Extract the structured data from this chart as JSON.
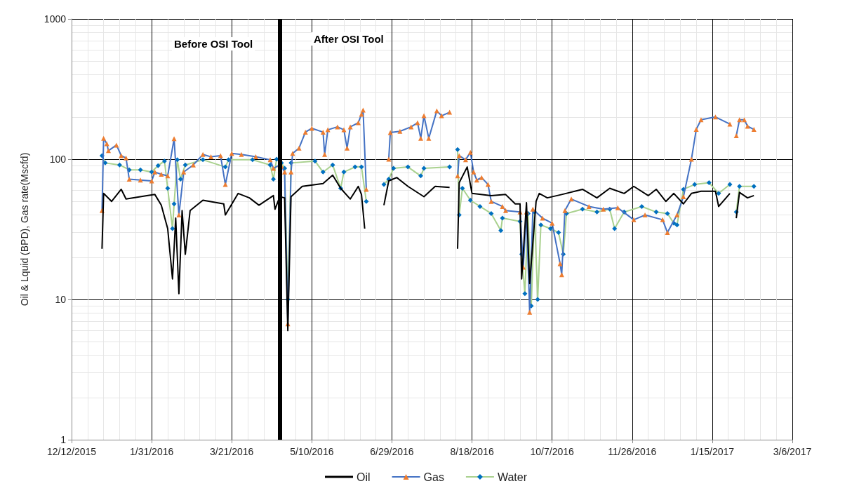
{
  "chart_data": {
    "type": "line",
    "ylabel": "Oil & Lquid (BPD), Gas rate(Mscfd)",
    "log": "y",
    "grid": true,
    "legend": "bottom",
    "ylim": [
      1,
      1000
    ],
    "yticks": [
      1,
      10,
      100,
      1000
    ],
    "xlim": [
      "2015-12-12",
      "2017-03-06"
    ],
    "xticks": [
      {
        "value": "2015-12-12",
        "label": "12/12/2015"
      },
      {
        "value": "2016-01-31",
        "label": "1/31/2016"
      },
      {
        "value": "2016-03-21",
        "label": "3/21/2016"
      },
      {
        "value": "2016-05-10",
        "label": "5/10/2016"
      },
      {
        "value": "2016-06-29",
        "label": "6/29/2016"
      },
      {
        "value": "2016-08-18",
        "label": "8/18/2016"
      },
      {
        "value": "2016-10-07",
        "label": "10/7/2016"
      },
      {
        "value": "2016-11-26",
        "label": "11/26/2016"
      },
      {
        "value": "2017-01-15",
        "label": "1/15/2017"
      },
      {
        "value": "2017-03-06",
        "label": "3/6/2017"
      }
    ],
    "ref_lines": [
      {
        "axis": "x",
        "value": "2016-04-20",
        "color": "#000000"
      }
    ],
    "annotations": [
      "Before OSI Tool",
      "After OSI Tool"
    ],
    "series": [
      {
        "name": "Oil",
        "color": "#000000",
        "marker": "none",
        "x": [
          "2015-12-31",
          "2016-01-01",
          "2016-01-06",
          "2016-01-12",
          "2016-01-15",
          "2016-01-28",
          "2016-02-02",
          "2016-02-06",
          "2016-02-10",
          "2016-02-13",
          "2016-02-15",
          "2016-02-17",
          "2016-02-19",
          "2016-02-21",
          "2016-02-24",
          "2016-03-03",
          "2016-03-16",
          "2016-03-17",
          "2016-03-25",
          "2016-04-01",
          "2016-04-07",
          "2016-04-16",
          "2016-04-17",
          "2016-04-20",
          "2016-04-23",
          "2016-04-25",
          "2016-04-27",
          "2016-05-04",
          "2016-05-17",
          "2016-05-23",
          "2016-05-28",
          "2016-06-03",
          "2016-06-08",
          "2016-06-10",
          "2016-06-12",
          "2016-06-18",
          "2016-06-24",
          "2016-06-27",
          "2016-07-02",
          "2016-07-09",
          "2016-07-19",
          "2016-07-26",
          "2016-08-04",
          "2016-08-06",
          "2016-08-09",
          "2016-08-10",
          "2016-08-15",
          "2016-08-18",
          "2016-08-30",
          "2016-09-08",
          "2016-09-14",
          "2016-09-17",
          "2016-09-18",
          "2016-09-21",
          "2016-09-23",
          "2016-09-27",
          "2016-09-29",
          "2016-10-04",
          "2016-10-13",
          "2016-10-26",
          "2016-11-04",
          "2016-11-12",
          "2016-11-21",
          "2016-11-27",
          "2016-12-06",
          "2016-12-11",
          "2016-12-17",
          "2016-12-22",
          "2016-12-28",
          "2017-01-02",
          "2017-01-08",
          "2017-01-17",
          "2017-01-19",
          "2017-01-26",
          "2017-01-28",
          "2017-01-30",
          "2017-02-01",
          "2017-02-06",
          "2017-02-10"
        ],
        "values": [
          23,
          57,
          50,
          61,
          52,
          55,
          56,
          47,
          32,
          14,
          38,
          11,
          43,
          21,
          43,
          51,
          48,
          40,
          57,
          53,
          47,
          55,
          44,
          54,
          53,
          6,
          54,
          64,
          67,
          77,
          62,
          52,
          64,
          56,
          32,
          null,
          47,
          70,
          74,
          64,
          54,
          64,
          63,
          null,
          23,
          68,
          88,
          57,
          55,
          56,
          48,
          48,
          14,
          49,
          13,
          50,
          57,
          53,
          56,
          61,
          53,
          62,
          57,
          64,
          55,
          61,
          50,
          57,
          48,
          57,
          59,
          59,
          46,
          57,
          null,
          38,
          58,
          53,
          55
        ]
      },
      {
        "name": "Gas",
        "color": "#4472c4",
        "colors": [
          "#ed7d31",
          "#ed7d31",
          "#ed7d31",
          "#ed7d31",
          "#ed7d31",
          "#ed7d31",
          "#ed7d31",
          "#ed7d31",
          "#ed7d31",
          "#ed7d31",
          "#ed7d31",
          "#ed7d31",
          "#ed7d31",
          "#ed7d31",
          "#ed7d31",
          "#ed7d31",
          "#ed7d31",
          "#ed7d31",
          "#ed7d31",
          "#ed7d31",
          "#ed7d31",
          "#ed7d31",
          "#ed7d31",
          "#ed7d31",
          "#ed7d31",
          "#ed7d31",
          "#ed7d31",
          "#ed7d31",
          "#ed7d31",
          "#ed7d31",
          "#ed7d31",
          "#ed7d31",
          "#ed7d31",
          "#ed7d31",
          "#ed7d31",
          "#ed7d31",
          "#ed7d31",
          "#ed7d31",
          "#ed7d31",
          "#ed7d31",
          "#ed7d31",
          "#ed7d31",
          "#ed7d31",
          "#ed7d31",
          "#ed7d31",
          "#ed7d31",
          "#ed7d31",
          "#ed7d31",
          "#ed7d31",
          "#ed7d31",
          "#ed7d31",
          "#ed7d31",
          "#ed7d31",
          "#ed7d31",
          "#ed7d31",
          "#ed7d31",
          "#ed7d31",
          "#ed7d31",
          "#ed7d31",
          "#ed7d31",
          "#ed7d31",
          "#ed7d31",
          "#ed7d31",
          "#ed7d31",
          "#ed7d31",
          "#ed7d31",
          "#ed7d31",
          "#ed7d31",
          "#ed7d31",
          "#ed7d31",
          "#ed7d31",
          "#ed7d31",
          "#ed7d31",
          "#ed7d31",
          "#ed7d31",
          "#ed7d31",
          "#ed7d31",
          "#ed7d31",
          "#ed7d31",
          "#ed7d31",
          "#ed7d31",
          "#ed7d31",
          "#ed7d31",
          "#ed7d31",
          "#ed7d31",
          "#ed7d31",
          "#ed7d31",
          "#ed7d31",
          "#ed7d31",
          "#ed7d31",
          "#ed7d31",
          "#ed7d31",
          "#ed7d31",
          "#ed7d31",
          "#ed7d31",
          "#ed7d31",
          "#ed7d31",
          "#ed7d31",
          "#ed7d31",
          "#ed7d31",
          "#ed7d31"
        ],
        "marker": "triangle",
        "x": [
          "2015-12-31",
          "2016-01-01",
          "2016-01-03",
          "2016-01-04",
          "2016-01-09",
          "2016-01-12",
          "2016-01-15",
          "2016-01-17",
          "2016-01-24",
          "2016-01-31",
          "2016-02-02",
          "2016-02-06",
          "2016-02-10",
          "2016-02-14",
          "2016-02-17",
          "2016-02-20",
          "2016-02-26",
          "2016-03-03",
          "2016-03-08",
          "2016-03-14",
          "2016-03-17",
          "2016-03-21",
          "2016-03-27",
          "2016-04-05",
          "2016-04-14",
          "2016-04-16",
          "2016-04-20",
          "2016-04-21",
          "2016-04-23",
          "2016-04-25",
          "2016-04-27",
          "2016-04-28",
          "2016-05-02",
          "2016-05-06",
          "2016-05-10",
          "2016-05-17",
          "2016-05-18",
          "2016-05-20",
          "2016-05-26",
          "2016-05-30",
          "2016-06-01",
          "2016-06-03",
          "2016-06-08",
          "2016-06-10",
          "2016-06-11",
          "2016-06-13",
          "2016-06-19",
          "2016-06-27",
          "2016-06-28",
          "2016-07-04",
          "2016-07-11",
          "2016-07-15",
          "2016-07-17",
          "2016-07-19",
          "2016-07-22",
          "2016-07-27",
          "2016-07-30",
          "2016-08-04",
          "2016-08-06",
          "2016-08-09",
          "2016-08-10",
          "2016-08-14",
          "2016-08-17",
          "2016-08-19",
          "2016-08-21",
          "2016-08-24",
          "2016-08-28",
          "2016-08-30",
          "2016-09-06",
          "2016-09-08",
          "2016-09-17",
          "2016-09-19",
          "2016-09-21",
          "2016-09-23",
          "2016-09-25",
          "2016-10-01",
          "2016-10-07",
          "2016-10-12",
          "2016-10-13",
          "2016-10-15",
          "2016-10-19",
          "2016-10-30",
          "2016-11-08",
          "2016-11-17",
          "2016-11-27",
          "2016-12-04",
          "2016-12-15",
          "2016-12-18",
          "2016-12-24",
          "2016-12-28",
          "2017-01-02",
          "2017-01-05",
          "2017-01-08",
          "2017-01-17",
          "2017-01-26",
          "2017-01-28",
          "2017-01-30",
          "2017-02-01",
          "2017-02-04",
          "2017-02-06",
          "2017-02-10"
        ],
        "values": [
          43,
          141,
          129,
          115,
          126,
          106,
          102,
          72,
          71,
          70,
          81,
          78,
          76,
          140,
          40,
          81,
          91,
          108,
          104,
          106,
          66,
          110,
          108,
          104,
          99,
          86,
          91,
          89,
          81,
          6.7,
          81,
          110,
          120,
          156,
          166,
          156,
          108,
          162,
          170,
          162,
          120,
          170,
          182,
          209,
          224,
          61,
          null,
          100,
          155,
          158,
          170,
          182,
          141,
          204,
          141,
          221,
          204,
          216,
          null,
          76,
          106,
          99,
          112,
          81,
          71,
          74,
          66,
          50,
          46,
          43,
          42,
          17,
          42,
          8.1,
          44,
          38,
          35,
          18,
          15,
          43,
          52,
          46,
          44,
          45,
          37,
          40,
          37,
          30,
          40,
          54,
          100,
          163,
          191,
          200,
          178,
          null,
          147,
          191,
          191,
          172,
          163
        ]
      },
      {
        "name": "Water",
        "color": "#a9d18e",
        "colors": [
          "#0070c0",
          "#0070c0",
          "#0070c0",
          "#0070c0",
          "#0070c0",
          "#0070c0",
          "#0070c0",
          "#0070c0",
          "#0070c0",
          "#0070c0",
          "#0070c0",
          "#0070c0",
          "#0070c0",
          "#0070c0",
          "#0070c0",
          "#0070c0",
          "#0070c0",
          "#0070c0",
          "#0070c0",
          "#0070c0",
          "#0070c0",
          "#0070c0",
          "#0070c0",
          "#0070c0",
          "#0070c0",
          "#0070c0",
          "#0070c0",
          "#0070c0",
          "#0070c0",
          "#0070c0",
          "#0070c0",
          "#0070c0",
          "#0070c0",
          "#0070c0",
          "#0070c0",
          "#0070c0",
          "#0070c0",
          "#0070c0",
          "#0070c0",
          "#0070c0",
          "#0070c0",
          "#0070c0",
          "#0070c0",
          "#0070c0",
          "#0070c0",
          "#0070c0",
          "#0070c0",
          "#0070c0",
          "#0070c0",
          "#0070c0",
          "#0070c0",
          "#0070c0",
          "#0070c0",
          "#0070c0",
          "#0070c0",
          "#0070c0",
          "#0070c0",
          "#0070c0",
          "#0070c0",
          "#0070c0",
          "#0070c0",
          "#0070c0",
          "#0070c0",
          "#0070c0",
          "#0070c0",
          "#0070c0",
          "#0070c0",
          "#0070c0",
          "#0070c0",
          "#0070c0",
          "#0070c0",
          "#0070c0",
          "#0070c0",
          "#0070c0",
          "#0070c0",
          "#0070c0",
          "#0070c0",
          "#0070c0",
          "#0070c0",
          "#0070c0",
          "#0070c0"
        ],
        "marker": "diamond",
        "x": [
          "2015-12-31",
          "2016-01-02",
          "2016-01-11",
          "2016-01-17",
          "2016-01-24",
          "2016-01-31",
          "2016-02-04",
          "2016-02-08",
          "2016-02-10",
          "2016-02-13",
          "2016-02-14",
          "2016-02-16",
          "2016-02-18",
          "2016-02-21",
          "2016-03-03",
          "2016-03-17",
          "2016-03-19",
          "2016-04-03",
          "2016-04-14",
          "2016-04-16",
          "2016-04-18",
          "2016-04-21",
          "2016-04-23",
          "2016-04-25",
          "2016-04-27",
          "2016-05-12",
          "2016-05-17",
          "2016-05-23",
          "2016-05-28",
          "2016-05-30",
          "2016-06-06",
          "2016-06-10",
          "2016-06-13",
          "2016-06-19",
          "2016-06-24",
          "2016-06-27",
          "2016-06-30",
          "2016-07-09",
          "2016-07-17",
          "2016-07-19",
          "2016-08-04",
          "2016-08-06",
          "2016-08-09",
          "2016-08-10",
          "2016-08-12",
          "2016-08-17",
          "2016-08-23",
          "2016-08-30",
          "2016-09-05",
          "2016-09-06",
          "2016-09-17",
          "2016-09-18",
          "2016-09-20",
          "2016-09-22",
          "2016-09-24",
          "2016-09-26",
          "2016-09-28",
          "2016-09-30",
          "2016-10-06",
          "2016-10-11",
          "2016-10-14",
          "2016-10-16",
          "2016-10-26",
          "2016-11-04",
          "2016-11-12",
          "2016-11-15",
          "2016-11-21",
          "2016-12-02",
          "2016-12-11",
          "2016-12-18",
          "2016-12-22",
          "2016-12-24",
          "2016-12-28",
          "2017-01-04",
          "2017-01-13",
          "2017-01-19",
          "2017-01-26",
          "2017-01-28",
          "2017-01-30",
          "2017-02-01",
          "2017-02-10"
        ],
        "values": [
          106,
          94,
          91,
          84,
          84,
          81,
          90,
          97,
          62,
          32,
          48,
          99,
          72,
          91,
          99,
          88,
          99,
          99,
          91,
          72,
          100,
          94,
          86,
          10,
          94,
          97,
          81,
          91,
          62,
          81,
          88,
          88,
          50,
          null,
          66,
          72,
          86,
          88,
          76,
          86,
          88,
          null,
          117,
          40,
          62,
          51,
          46,
          41,
          31,
          38,
          36,
          21,
          11,
          41,
          9,
          42,
          10,
          34,
          32,
          30,
          21,
          41,
          44,
          42,
          44,
          32,
          42,
          46,
          42,
          41,
          35,
          34,
          61,
          66,
          68,
          57,
          66,
          null,
          42,
          64,
          64
        ]
      }
    ]
  }
}
